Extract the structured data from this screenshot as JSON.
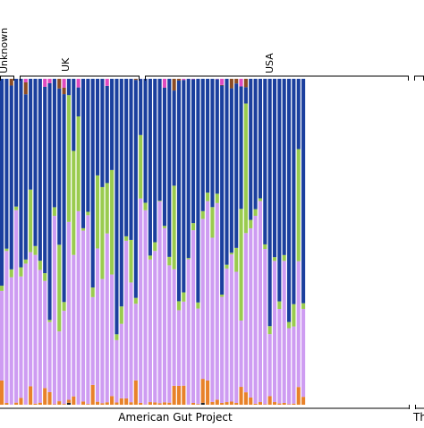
{
  "chart_data": {
    "type": "bar",
    "stacked": true,
    "normalized": true,
    "ylim": [
      0,
      1
    ],
    "groups": [
      {
        "label": "Unknown",
        "count": 3
      },
      {
        "label": "UK",
        "count": 20
      },
      {
        "label": "USA",
        "count": 41
      }
    ],
    "study_label": "American Gut Project",
    "next_study_partial": "Th",
    "series": [
      {
        "color": "#E8822A",
        "mean": 0.018
      },
      {
        "color": "#CE9CF2",
        "mean": 0.4
      },
      {
        "color": "#9ACB4F",
        "mean": 0.03
      },
      {
        "color": "#1B3F9E",
        "mean": 0.5
      },
      {
        "color": "#8C4B24",
        "mean": 0.01
      },
      {
        "color": "#E04BC0",
        "mean": 0.008
      },
      {
        "color": "#222222",
        "mean": 0.002
      }
    ],
    "bar_count": 64
  }
}
